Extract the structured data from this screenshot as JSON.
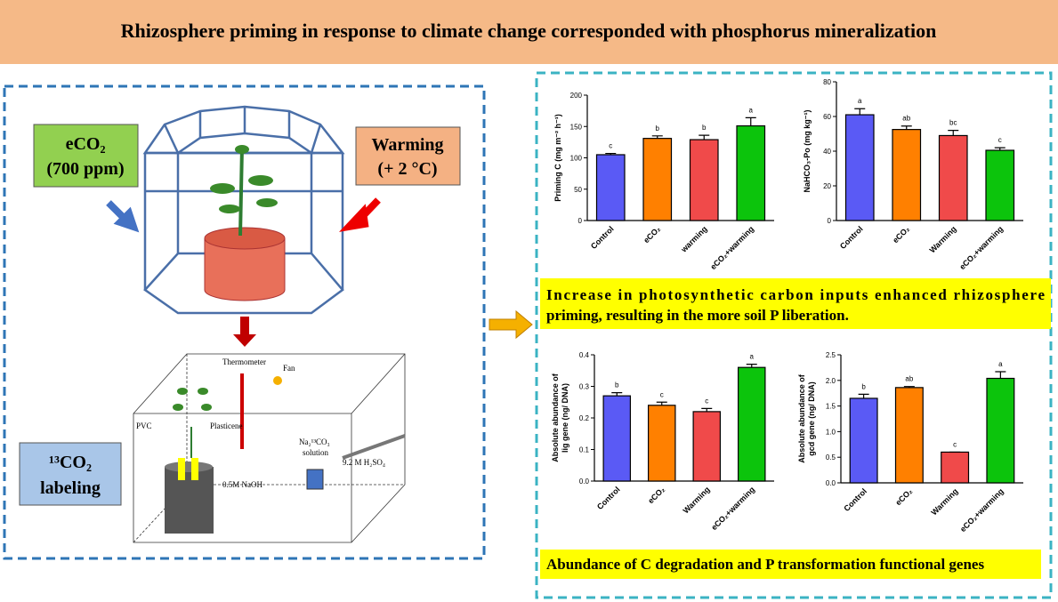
{
  "header": {
    "title": "Rhizosphere priming in response to climate change corresponded with phosphorus mineralization"
  },
  "left_panel": {
    "eco2": [
      "eCO₂",
      "(700 ppm)"
    ],
    "warming": [
      "Warming",
      "(+ 2 °C)"
    ],
    "labeling": [
      "¹³CO₂",
      "labeling"
    ],
    "apparatus": {
      "thermometer": "Thermometer",
      "fan": "Fan",
      "pvc": "PVC",
      "plasticene": "Plasticene",
      "solution": [
        "Na₂¹³CO₃",
        "solution"
      ],
      "acid": "9.2 M H₂SO₄",
      "naoh": "0.5M NaOH"
    }
  },
  "captions": [
    [
      "Increase in photosynthetic carbon inputs enhanced rhizosphere",
      "priming, resulting in the more soil P liberation."
    ],
    [
      "Abundance of C degradation and P transformation functional genes"
    ]
  ],
  "chart_data": [
    {
      "type": "bar",
      "ylabel": [
        "Priming C (mg m⁻² h⁻¹)"
      ],
      "categories": [
        "Control",
        "eCO₂",
        "warming",
        "eCO₂+warming"
      ],
      "values": [
        105,
        131,
        129,
        151
      ],
      "errors": [
        2,
        4,
        7,
        13
      ],
      "letters": [
        "c",
        "b",
        "b",
        "a"
      ],
      "colors": [
        "#5a5af5",
        "#ff8000",
        "#f04a4a",
        "#0cc40c"
      ],
      "ylim": [
        0,
        200
      ],
      "yticks": [
        0,
        50,
        100,
        150,
        200
      ]
    },
    {
      "type": "bar",
      "ylabel": [
        "NaHCO₃-Po (mg kg⁻¹)"
      ],
      "categories": [
        "Control",
        "eCO₂",
        "Warming",
        "eCO₂+warming"
      ],
      "values": [
        61,
        52.5,
        49,
        40.5
      ],
      "errors": [
        3.5,
        2,
        3,
        1.5
      ],
      "letters": [
        "a",
        "ab",
        "bc",
        "c"
      ],
      "colors": [
        "#5a5af5",
        "#ff8000",
        "#f04a4a",
        "#0cc40c"
      ],
      "ylim": [
        0,
        80
      ],
      "yticks": [
        0,
        20,
        40,
        60,
        80
      ]
    },
    {
      "type": "bar",
      "ylabel": [
        "Absolute abundance of",
        "lig gene (ng/ DNA)"
      ],
      "categories": [
        "Control",
        "eCO₂",
        "Warming",
        "eCO₂+warming"
      ],
      "values": [
        0.27,
        0.24,
        0.22,
        0.36
      ],
      "errors": [
        0.01,
        0.01,
        0.01,
        0.01
      ],
      "letters": [
        "b",
        "c",
        "c",
        "a"
      ],
      "colors": [
        "#5a5af5",
        "#ff8000",
        "#f04a4a",
        "#0cc40c"
      ],
      "ylim": [
        0,
        0.4
      ],
      "yticks": [
        {
          "value": 0,
          "label": "0.0"
        },
        0.1,
        0.2,
        0.3,
        0.4
      ]
    },
    {
      "type": "bar",
      "ylabel": [
        "Absolute abundance of",
        "gcd gene (ng/ DNA)"
      ],
      "categories": [
        "Control",
        "eCO₂",
        "Warming",
        "eCO₂+warming"
      ],
      "values": [
        1.65,
        1.86,
        0.6,
        2.04
      ],
      "errors": [
        0.08,
        0.02,
        0,
        0.13
      ],
      "letters": [
        "b",
        "ab",
        "c",
        "a"
      ],
      "colors": [
        "#5a5af5",
        "#ff8000",
        "#f04a4a",
        "#0cc40c"
      ],
      "ylim": [
        0,
        2.5
      ],
      "yticks": [
        {
          "value": 0,
          "label": "0.0"
        },
        0.5,
        {
          "value": 1,
          "label": "1.0"
        },
        1.5,
        {
          "value": 2,
          "label": "2.0"
        },
        2.5
      ]
    }
  ]
}
